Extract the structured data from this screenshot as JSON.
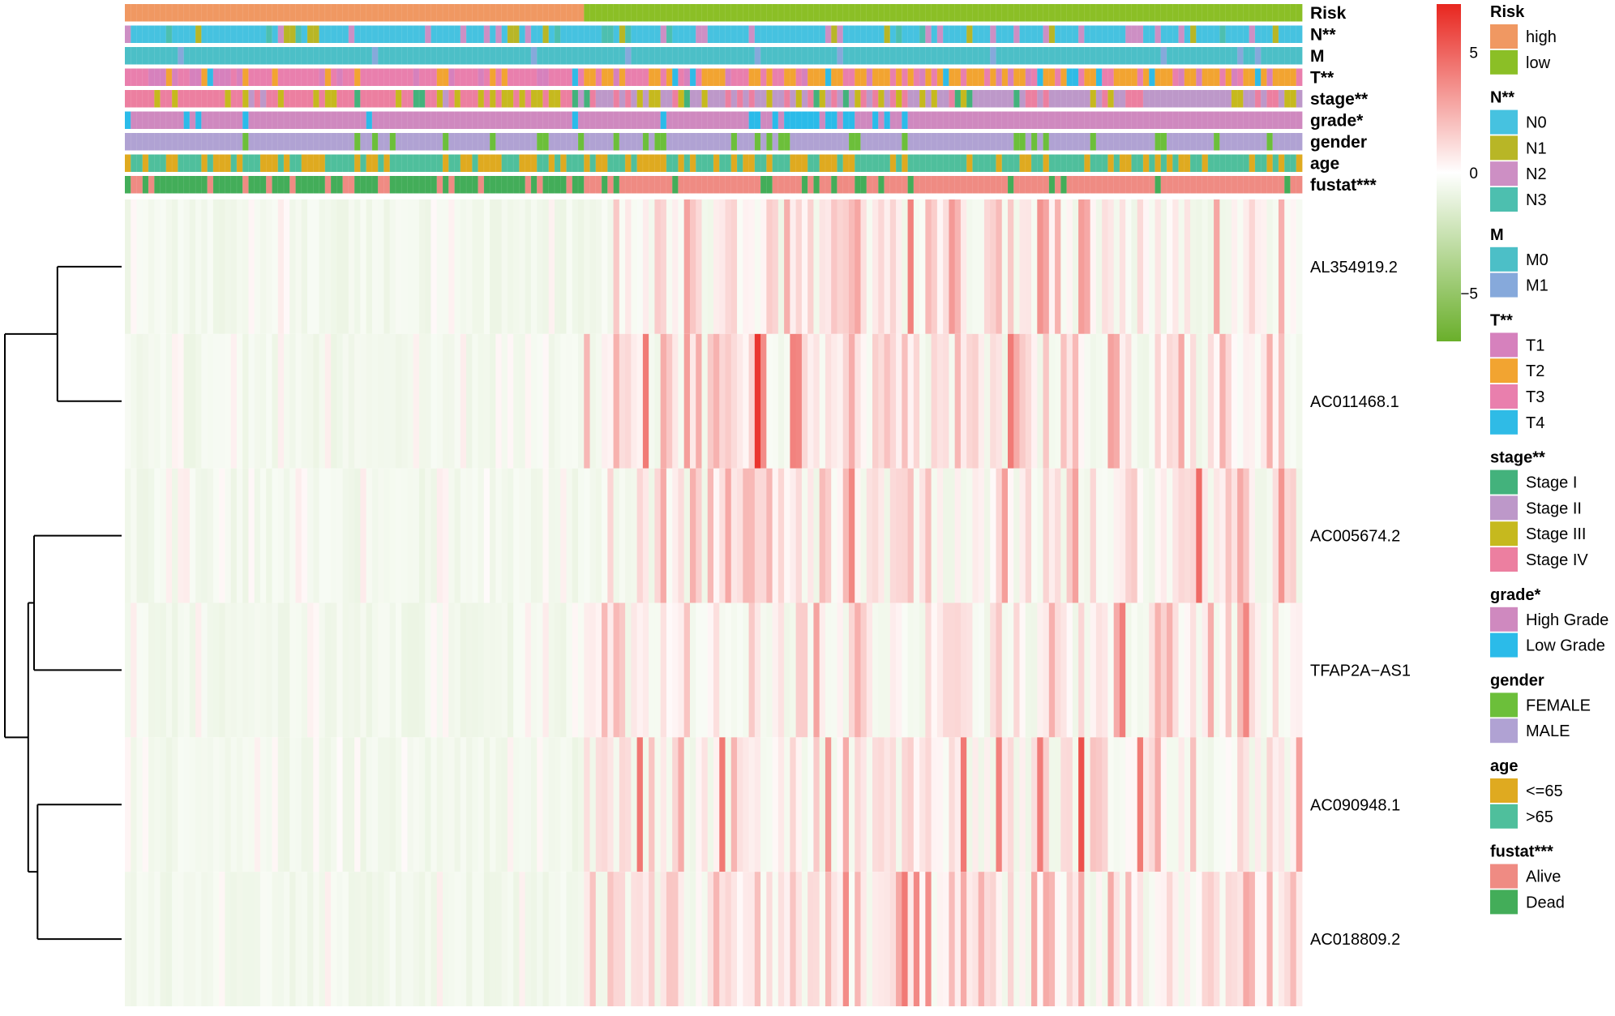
{
  "chart_data": {
    "type": "heatmap",
    "n_samples": 200,
    "risk_split_index": 78,
    "color_scale": {
      "min": -7,
      "max": 7,
      "ticks": [
        5,
        0,
        -5
      ],
      "tick_labels": [
        "5",
        "0",
        "−5"
      ],
      "low_color": "#6aaf2b",
      "mid_color": "#ffffff",
      "high_color": "#e8261f"
    },
    "annotations": [
      {
        "name": "Risk",
        "legend_title": "Risk",
        "categories": [
          "high",
          "low"
        ],
        "colors": [
          "#f09862",
          "#8bbf26"
        ]
      },
      {
        "name": "N**",
        "legend_title": "N**",
        "categories": [
          "N0",
          "N1",
          "N2",
          "N3"
        ],
        "colors": [
          "#46c2e0",
          "#b8b626",
          "#cd8fc4",
          "#4dbfaf"
        ]
      },
      {
        "name": "M",
        "legend_title": "M",
        "categories": [
          "M0",
          "M1"
        ],
        "colors": [
          "#4cbfc7",
          "#86a9db"
        ]
      },
      {
        "name": "T**",
        "legend_title": "T**",
        "categories": [
          "T1",
          "T2",
          "T3",
          "T4"
        ],
        "colors": [
          "#d681bd",
          "#f2a431",
          "#e97fad",
          "#2fbbe6"
        ]
      },
      {
        "name": "stage**",
        "legend_title": "stage**",
        "categories": [
          "Stage I",
          "Stage II",
          "Stage III",
          "Stage IV"
        ],
        "colors": [
          "#43b27c",
          "#bd98c9",
          "#c6b91e",
          "#ec7fa0"
        ]
      },
      {
        "name": "grade*",
        "legend_title": "grade*",
        "categories": [
          "High Grade",
          "Low Grade"
        ],
        "colors": [
          "#cf89bf",
          "#2bbbe9"
        ]
      },
      {
        "name": "gender",
        "legend_title": "gender",
        "categories": [
          "FEMALE",
          "MALE"
        ],
        "colors": [
          "#6cbf3a",
          "#b0a2d3"
        ]
      },
      {
        "name": "age",
        "legend_title": "age",
        "categories": [
          "<=65",
          ">65"
        ],
        "colors": [
          "#dfaa20",
          "#4fbf9c"
        ]
      },
      {
        "name": "fustat***",
        "legend_title": "fustat***",
        "categories": [
          "Alive",
          "Dead"
        ],
        "colors": [
          "#ef8b83",
          "#43ad59"
        ]
      }
    ],
    "genes": [
      "AL354919.2",
      "AC011468.1",
      "AC005674.2",
      "TFAP2A−AS1",
      "AC090948.1",
      "AC018809.2"
    ],
    "dendrogram": {
      "merges": [
        {
          "pair": [
            "AL354919.2",
            "AC011468.1"
          ],
          "height": 0.55
        },
        {
          "pair": [
            "AC090948.1",
            "AC018809.2"
          ],
          "height": 0.72
        },
        {
          "pair": [
            "AC005674.2",
            "TFAP2A−AS1"
          ],
          "height": 0.75
        },
        {
          "pair": [
            "cluster(AC005674.2,TFAP2A−AS1)",
            "cluster(AC090948.1,AC018809.2)"
          ],
          "height": 0.8
        },
        {
          "pair": [
            "cluster(AL354919.2,AC011468.1)",
            "rest"
          ],
          "height": 1.0
        }
      ]
    },
    "risk": [
      0,
      0,
      0,
      0,
      0,
      0,
      0,
      0,
      0,
      0,
      0,
      0,
      0,
      0,
      0,
      0,
      0,
      0,
      0,
      0,
      0,
      0,
      0,
      0,
      0,
      0,
      0,
      0,
      0,
      0,
      0,
      0,
      0,
      0,
      0,
      0,
      0,
      0,
      0,
      0,
      0,
      0,
      0,
      0,
      0,
      0,
      0,
      0,
      0,
      0,
      0,
      0,
      0,
      0,
      0,
      0,
      0,
      0,
      0,
      0,
      0,
      0,
      0,
      0,
      0,
      0,
      0,
      0,
      0,
      0,
      0,
      0,
      0,
      0,
      0,
      0,
      0,
      0,
      1,
      1,
      1,
      1,
      1,
      1,
      1,
      1,
      1,
      1,
      1,
      1,
      1,
      1,
      1,
      1,
      1,
      1,
      1,
      1,
      1,
      1,
      1,
      1,
      1,
      1,
      1,
      1,
      1,
      1,
      1,
      1,
      1,
      1,
      1,
      1,
      1,
      1,
      1,
      1,
      1,
      1,
      1,
      1,
      1,
      1,
      1,
      1,
      1,
      1,
      1,
      1,
      1,
      1,
      1,
      1,
      1,
      1,
      1,
      1,
      1,
      1,
      1,
      1,
      1,
      1,
      1,
      1,
      1,
      1,
      1,
      1,
      1,
      1,
      1,
      1,
      1,
      1,
      1,
      1,
      1,
      1,
      1,
      1,
      1,
      1,
      1,
      1,
      1,
      1,
      1,
      1,
      1,
      1,
      1,
      1,
      1,
      1,
      1,
      1,
      1,
      1,
      1,
      1,
      1,
      1,
      1,
      1,
      1,
      1,
      1,
      1,
      1,
      1,
      1,
      1,
      1,
      1,
      1,
      1,
      1,
      1,
      1,
      1,
      1,
      1
    ]
  }
}
